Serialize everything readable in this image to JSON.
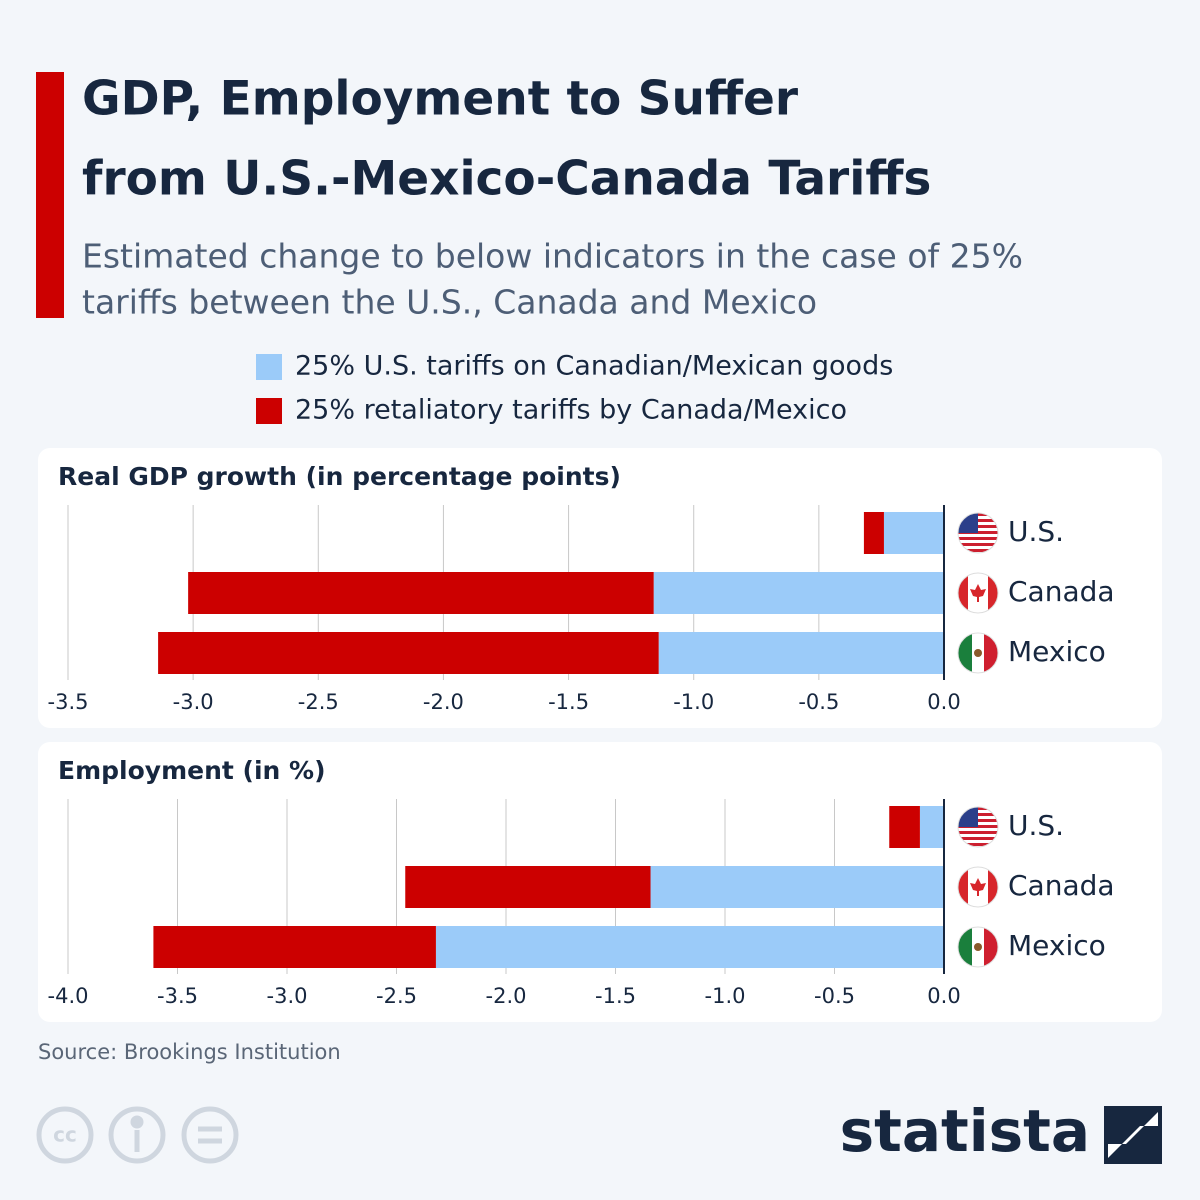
{
  "title": [
    "GDP, Employment to Suffer",
    "from U.S.-Mexico-Canada Tariffs"
  ],
  "subtitle": [
    "Estimated change to below indicators in the case of 25%",
    "tariffs between the U.S., Canada and Mexico"
  ],
  "source": "Source: Brookings Institution",
  "brand": "statista",
  "chart_data": [
    {
      "type": "bar",
      "orientation": "horizontal",
      "stacked": true,
      "grid": true,
      "title": "Real GDP growth (in percentage points)",
      "categories": [
        "U.S.",
        "Canada",
        "Mexico"
      ],
      "series": [
        {
          "name": "25% U.S. tariffs on Canadian/Mexican goods",
          "color": "#9bcbf9",
          "values": [
            -0.24,
            -1.16,
            -1.14
          ]
        },
        {
          "name": "25% retaliatory tariffs by Canada/Mexico",
          "color": "#cc0000",
          "values": [
            -0.08,
            -1.86,
            -2.0
          ]
        }
      ],
      "xlim": [
        -3.5,
        0
      ],
      "xticks": [
        -3.5,
        {
          "value": -3,
          "label": "-3.0"
        },
        -2.5,
        {
          "value": -2,
          "label": "-2.0"
        },
        -1.5,
        {
          "value": -1,
          "label": "-1.0"
        },
        -0.5,
        {
          "value": 0,
          "label": "0.0"
        }
      ]
    },
    {
      "type": "bar",
      "orientation": "horizontal",
      "stacked": true,
      "grid": true,
      "title": "Employment (in %)",
      "categories": [
        "U.S.",
        "Canada",
        "Mexico"
      ],
      "series": [
        {
          "color": "#9bcbf9",
          "values": [
            -0.11,
            -1.34,
            -2.32
          ]
        },
        {
          "color": "#cc0000",
          "values": [
            -0.14,
            -1.12,
            -1.29
          ]
        }
      ],
      "xlim": [
        -4,
        0
      ],
      "xticks": [
        {
          "value": -4,
          "label": "-4.0"
        },
        -3.5,
        {
          "value": -3,
          "label": "-3.0"
        },
        -2.5,
        {
          "value": -2,
          "label": "-2.0"
        },
        -1.5,
        {
          "value": -1,
          "label": "-1.0"
        },
        -0.5,
        {
          "value": 0,
          "label": "0.0"
        }
      ]
    }
  ]
}
